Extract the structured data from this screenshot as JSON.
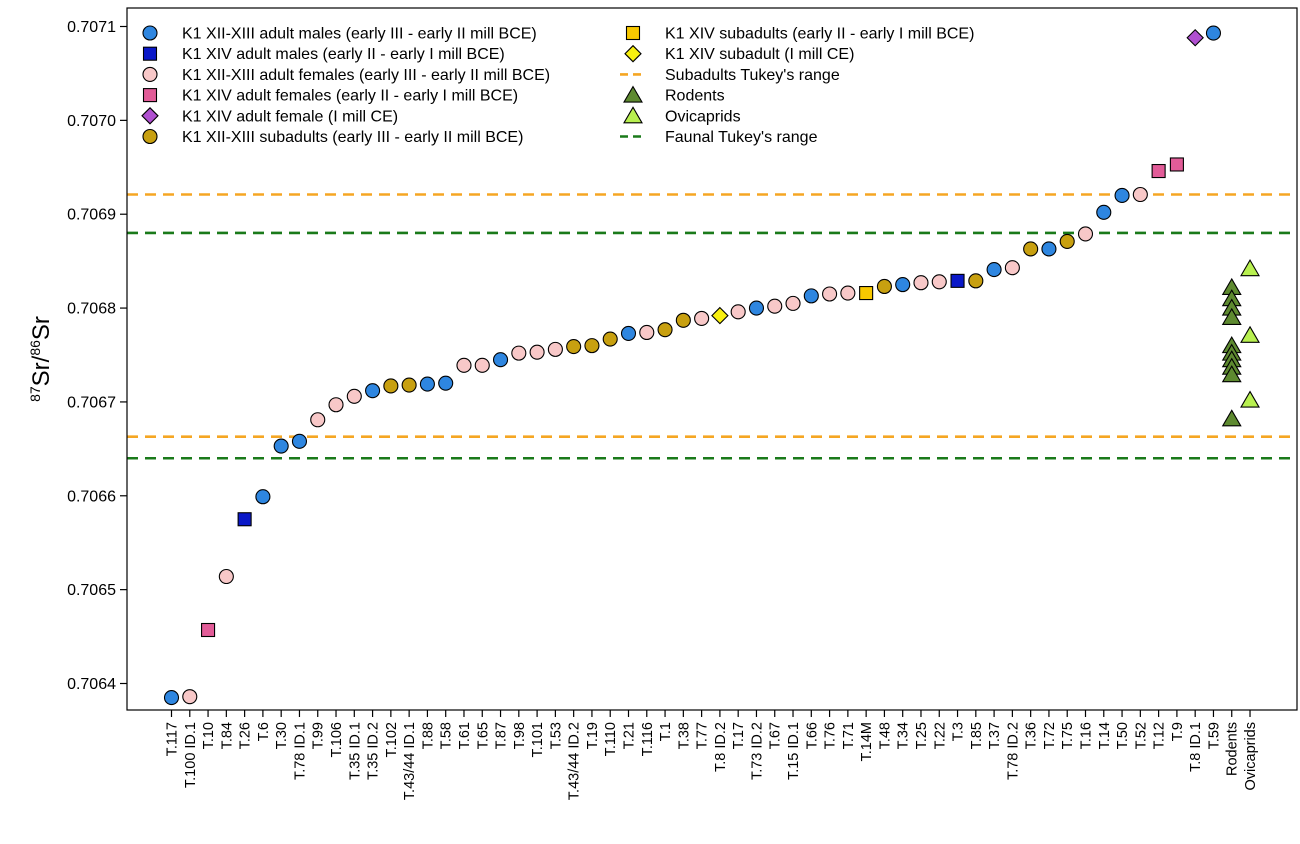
{
  "chart_data": {
    "type": "scatter",
    "ylabel": {
      "sup1": "87",
      "base1": "Sr/",
      "sup2": "86",
      "base2": "Sr"
    },
    "ylim": [
      0.70632,
      0.70712
    ],
    "yticks": [
      "0.7064",
      "0.7065",
      "0.7066",
      "0.7067",
      "0.7068",
      "0.7069",
      "0.7070",
      "0.7071"
    ],
    "grid": false,
    "legend_placement": "top-left",
    "categories": [
      "T.117",
      "T.100 ID.1",
      "T.10",
      "T.84",
      "T.26",
      "T.6",
      "T.30",
      "T.78 ID.1",
      "T.99",
      "T.106",
      "T.35 ID.1",
      "T.35 ID.2",
      "T.102",
      "T.43/44 ID.1",
      "T.88",
      "T.58",
      "T.61",
      "T.65",
      "T.87",
      "T.98",
      "T.101",
      "T.53",
      "T.43/44 ID.2",
      "T.19",
      "T.110",
      "T.21",
      "T.116",
      "T.1",
      "T.38",
      "T.77",
      "T.8 ID.2",
      "T.17",
      "T.73 ID.2",
      "T.67",
      "T.15 ID.1",
      "T.66",
      "T.76",
      "T.71",
      "T.14M",
      "T.48",
      "T.34",
      "T.25",
      "T.22",
      "T.3",
      "T.85",
      "T.37",
      "T.78 ID.2",
      "T.36",
      "T.72",
      "T.75",
      "T.16",
      "T.14",
      "T.50",
      "T.52",
      "T.12",
      "T.9",
      "T.8 ID.1",
      "T.59",
      "Rodents",
      "Ovicaprids"
    ],
    "legend": [
      {
        "label": "K1 XII-XIII adult males (early III - early II mill BCE)",
        "group": "males_xii"
      },
      {
        "label": "K1 XIV adult males (early II - early I mill BCE)",
        "group": "males_xiv"
      },
      {
        "label": "K1 XII-XIII adult females (early III - early II mill BCE)",
        "group": "females_xii"
      },
      {
        "label": "K1 XIV adult females (early II - early I mill BCE)",
        "group": "females_xiv"
      },
      {
        "label": "K1 XIV adult female (I mill CE)",
        "group": "female_ce"
      },
      {
        "label": "K1 XII-XIII subadults (early III - early II mill BCE)",
        "group": "sub_xii"
      },
      {
        "label": "K1 XIV subadults (early II - early I mill BCE)",
        "group": "sub_xiv"
      },
      {
        "label": "K1 XIV subadult (I mill CE)",
        "group": "sub_ce"
      },
      {
        "label": "Subadults Tukey's range",
        "group": "sub_range"
      },
      {
        "label": "Rodents",
        "group": "rodents"
      },
      {
        "label": "Ovicaprids",
        "group": "ovicaprids"
      },
      {
        "label": "Faunal Tukey's range",
        "group": "faunal_range"
      }
    ],
    "groups": {
      "males_xii": {
        "shape": "circle",
        "color": "#2e86e0"
      },
      "males_xiv": {
        "shape": "square",
        "color": "#0a18c8"
      },
      "females_xii": {
        "shape": "circle",
        "color": "#f8c8c8"
      },
      "females_xiv": {
        "shape": "square",
        "color": "#e25c98"
      },
      "female_ce": {
        "shape": "diamond",
        "color": "#b050d0"
      },
      "sub_xii": {
        "shape": "circle",
        "color": "#c8a010"
      },
      "sub_xiv": {
        "shape": "square",
        "color": "#f8c800"
      },
      "sub_ce": {
        "shape": "diamond",
        "color": "#f8f010"
      },
      "rodents": {
        "shape": "triangle",
        "color": "#5e8a30"
      },
      "ovicaprids": {
        "shape": "triangle",
        "color": "#b8f050"
      },
      "sub_range": {
        "shape": "dash",
        "color": "#f5a623"
      },
      "faunal_range": {
        "shape": "dash",
        "color": "#1a7a1a"
      }
    },
    "reference_lines": [
      {
        "group": "sub_range",
        "y": 0.706921
      },
      {
        "group": "sub_range",
        "y": 0.706663
      },
      {
        "group": "faunal_range",
        "y": 0.70688
      },
      {
        "group": "faunal_range",
        "y": 0.70664
      }
    ],
    "points": [
      {
        "x": 0,
        "y": 0.706385,
        "group": "males_xii"
      },
      {
        "x": 1,
        "y": 0.706386,
        "group": "females_xii"
      },
      {
        "x": 2,
        "y": 0.706457,
        "group": "females_xiv"
      },
      {
        "x": 3,
        "y": 0.706514,
        "group": "females_xii"
      },
      {
        "x": 4,
        "y": 0.706575,
        "group": "males_xiv"
      },
      {
        "x": 5,
        "y": 0.706599,
        "group": "males_xii"
      },
      {
        "x": 6,
        "y": 0.706653,
        "group": "males_xii"
      },
      {
        "x": 7,
        "y": 0.706658,
        "group": "males_xii"
      },
      {
        "x": 8,
        "y": 0.706681,
        "group": "females_xii"
      },
      {
        "x": 9,
        "y": 0.706697,
        "group": "females_xii"
      },
      {
        "x": 10,
        "y": 0.706706,
        "group": "females_xii"
      },
      {
        "x": 11,
        "y": 0.706712,
        "group": "males_xii"
      },
      {
        "x": 12,
        "y": 0.706717,
        "group": "sub_xii"
      },
      {
        "x": 13,
        "y": 0.706718,
        "group": "sub_xii"
      },
      {
        "x": 14,
        "y": 0.706719,
        "group": "males_xii"
      },
      {
        "x": 15,
        "y": 0.70672,
        "group": "males_xii"
      },
      {
        "x": 16,
        "y": 0.706739,
        "group": "females_xii"
      },
      {
        "x": 17,
        "y": 0.706739,
        "group": "females_xii"
      },
      {
        "x": 18,
        "y": 0.706745,
        "group": "males_xii"
      },
      {
        "x": 19,
        "y": 0.706752,
        "group": "females_xii"
      },
      {
        "x": 20,
        "y": 0.706753,
        "group": "females_xii"
      },
      {
        "x": 21,
        "y": 0.706756,
        "group": "females_xii"
      },
      {
        "x": 22,
        "y": 0.706759,
        "group": "sub_xii"
      },
      {
        "x": 23,
        "y": 0.70676,
        "group": "sub_xii"
      },
      {
        "x": 24,
        "y": 0.706767,
        "group": "sub_xii"
      },
      {
        "x": 25,
        "y": 0.706773,
        "group": "males_xii"
      },
      {
        "x": 26,
        "y": 0.706774,
        "group": "females_xii"
      },
      {
        "x": 27,
        "y": 0.706777,
        "group": "sub_xii"
      },
      {
        "x": 28,
        "y": 0.706787,
        "group": "sub_xii"
      },
      {
        "x": 29,
        "y": 0.706789,
        "group": "females_xii"
      },
      {
        "x": 30,
        "y": 0.706792,
        "group": "sub_ce"
      },
      {
        "x": 31,
        "y": 0.706796,
        "group": "females_xii"
      },
      {
        "x": 32,
        "y": 0.7068,
        "group": "males_xii"
      },
      {
        "x": 33,
        "y": 0.706802,
        "group": "females_xii"
      },
      {
        "x": 34,
        "y": 0.706805,
        "group": "females_xii"
      },
      {
        "x": 35,
        "y": 0.706813,
        "group": "males_xii"
      },
      {
        "x": 36,
        "y": 0.706815,
        "group": "females_xii"
      },
      {
        "x": 37,
        "y": 0.706816,
        "group": "females_xii"
      },
      {
        "x": 38,
        "y": 0.706816,
        "group": "sub_xiv"
      },
      {
        "x": 39,
        "y": 0.706823,
        "group": "sub_xii"
      },
      {
        "x": 40,
        "y": 0.706825,
        "group": "males_xii"
      },
      {
        "x": 41,
        "y": 0.706827,
        "group": "females_xii"
      },
      {
        "x": 42,
        "y": 0.706828,
        "group": "females_xii"
      },
      {
        "x": 43,
        "y": 0.706829,
        "group": "males_xiv"
      },
      {
        "x": 44,
        "y": 0.706829,
        "group": "sub_xii"
      },
      {
        "x": 45,
        "y": 0.706841,
        "group": "males_xii"
      },
      {
        "x": 46,
        "y": 0.706843,
        "group": "females_xii"
      },
      {
        "x": 47,
        "y": 0.706863,
        "group": "sub_xii"
      },
      {
        "x": 48,
        "y": 0.706863,
        "group": "males_xii"
      },
      {
        "x": 49,
        "y": 0.706871,
        "group": "sub_xii"
      },
      {
        "x": 50,
        "y": 0.706879,
        "group": "females_xii"
      },
      {
        "x": 51,
        "y": 0.706902,
        "group": "males_xii"
      },
      {
        "x": 52,
        "y": 0.70692,
        "group": "males_xii"
      },
      {
        "x": 53,
        "y": 0.706921,
        "group": "females_xii"
      },
      {
        "x": 54,
        "y": 0.706946,
        "group": "females_xiv"
      },
      {
        "x": 55,
        "y": 0.706953,
        "group": "females_xiv"
      },
      {
        "x": 56,
        "y": 0.707088,
        "group": "female_ce"
      },
      {
        "x": 57,
        "y": 0.707093,
        "group": "males_xii"
      },
      {
        "x": 58,
        "y": 0.706822,
        "group": "rodents"
      },
      {
        "x": 58,
        "y": 0.70681,
        "group": "rodents"
      },
      {
        "x": 58,
        "y": 0.7068,
        "group": "rodents"
      },
      {
        "x": 58,
        "y": 0.70679,
        "group": "rodents"
      },
      {
        "x": 58,
        "y": 0.70676,
        "group": "rodents"
      },
      {
        "x": 58,
        "y": 0.706752,
        "group": "rodents"
      },
      {
        "x": 58,
        "y": 0.706745,
        "group": "rodents"
      },
      {
        "x": 58,
        "y": 0.706737,
        "group": "rodents"
      },
      {
        "x": 58,
        "y": 0.706729,
        "group": "rodents"
      },
      {
        "x": 58,
        "y": 0.706682,
        "group": "rodents"
      },
      {
        "x": 59,
        "y": 0.706842,
        "group": "ovicaprids"
      },
      {
        "x": 59,
        "y": 0.706771,
        "group": "ovicaprids"
      },
      {
        "x": 59,
        "y": 0.706702,
        "group": "ovicaprids"
      }
    ]
  }
}
